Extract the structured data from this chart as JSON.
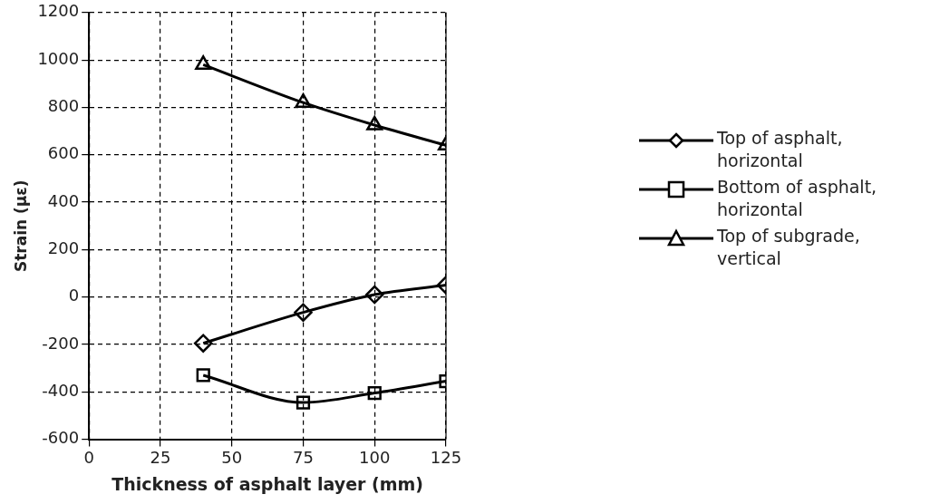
{
  "chart_data": {
    "type": "line",
    "xlabel": "Thickness of asphalt layer (mm)",
    "ylabel": "Strain (με)",
    "x": [
      40,
      75,
      100,
      125
    ],
    "series": [
      {
        "name": "Top of asphalt, horizontal",
        "color": "#000000",
        "marker": "diamond",
        "values": [
          -195,
          -65,
          10,
          50
        ]
      },
      {
        "name": "Bottom of asphalt, horizontal",
        "color": "#000000",
        "marker": "square",
        "values": [
          -330,
          -445,
          -405,
          -355
        ]
      },
      {
        "name": "Top of subgrade, vertical",
        "color": "#000000",
        "marker": "triangle",
        "values": [
          980,
          820,
          725,
          640
        ]
      }
    ],
    "xlim": [
      0,
      125
    ],
    "xticks": [
      0,
      25,
      50,
      75,
      100,
      125
    ],
    "ylim": [
      -600,
      1200
    ],
    "yticks": [
      -600,
      -400,
      -200,
      0,
      200,
      400,
      600,
      800,
      1000,
      1200
    ],
    "grid": true,
    "legend": "right",
    "line_style": "solid"
  }
}
